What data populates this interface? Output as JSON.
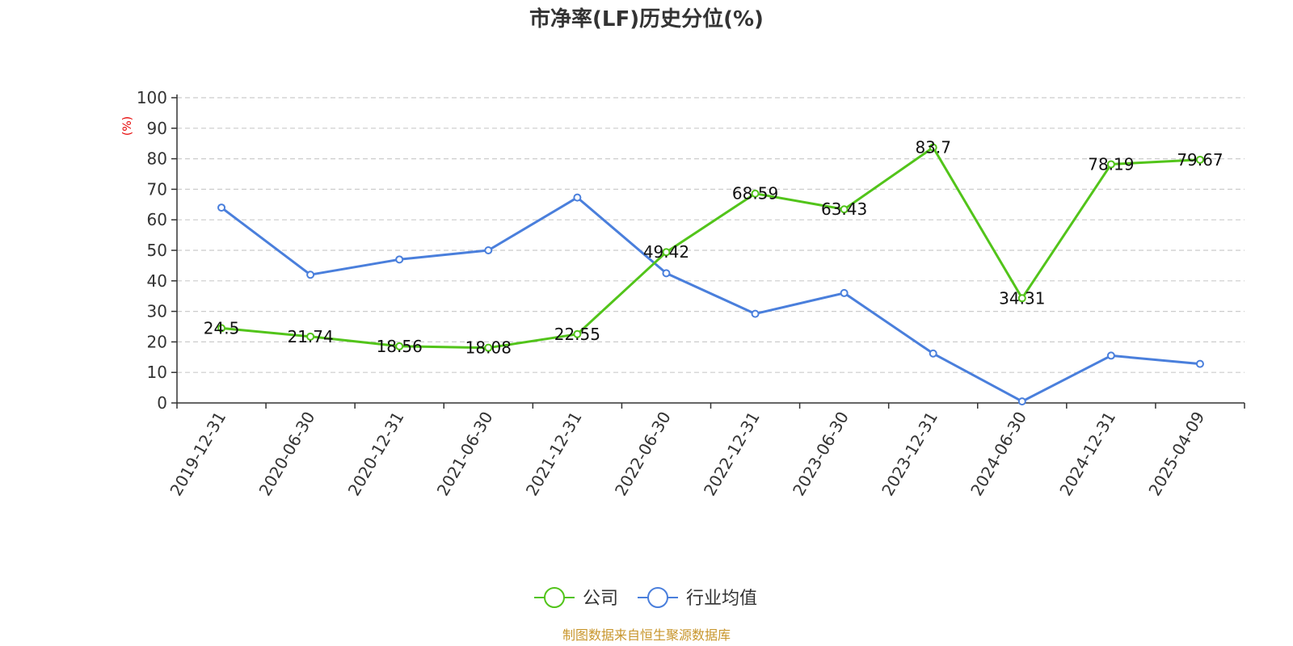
{
  "chart_data": {
    "type": "line",
    "title": "市净率(LF)历史分位(%)",
    "ylabel": "(%)",
    "ylim": [
      0,
      100
    ],
    "yticks": [
      0,
      10,
      20,
      30,
      40,
      50,
      60,
      70,
      80,
      90,
      100
    ],
    "grid": true,
    "legend_position": "bottom",
    "categories": [
      "2019-12-31",
      "2020-06-30",
      "2020-12-31",
      "2021-06-30",
      "2021-12-31",
      "2022-06-30",
      "2022-12-31",
      "2023-06-30",
      "2023-12-31",
      "2024-06-30",
      "2024-12-31",
      "2025-04-09"
    ],
    "series": [
      {
        "name": "公司",
        "color": "#52c41a",
        "values": [
          24.5,
          21.74,
          18.56,
          18.08,
          22.55,
          49.42,
          68.59,
          63.43,
          83.7,
          34.31,
          78.19,
          79.67
        ],
        "labels": [
          "24.5",
          "21.74",
          "18.56",
          "18.08",
          "22.55",
          "49.42",
          "68.59",
          "63.43",
          "83.7",
          "34.31",
          "78.19",
          "79.67"
        ],
        "show_labels": true
      },
      {
        "name": "行业均值",
        "color": "#4a7fdc",
        "values": [
          64,
          42,
          47,
          50,
          67.3,
          42.5,
          29.2,
          36,
          16.2,
          0.5,
          15.5,
          12.8
        ],
        "show_labels": false
      }
    ],
    "source": "制图数据来自恒生聚源数据库",
    "unit_color": "#e60000",
    "source_color": "#c8962d"
  }
}
